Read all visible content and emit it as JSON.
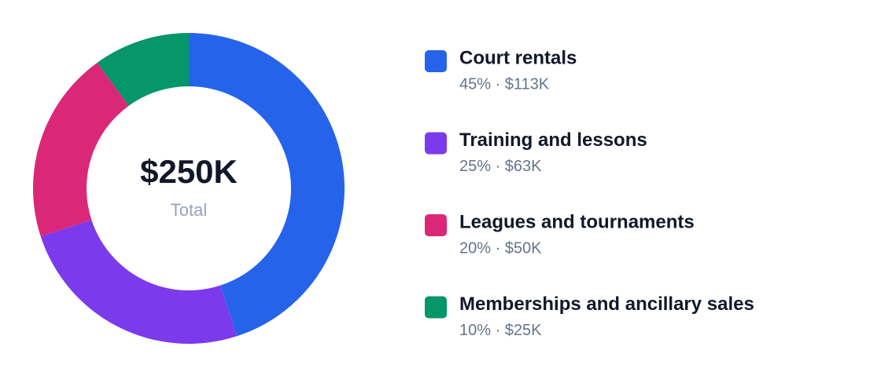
{
  "chart_data": {
    "type": "pie",
    "center_value": "$250K",
    "center_label": "Total",
    "categories": [
      "Court rentals",
      "Training and lessons",
      "Leagues and tournaments",
      "Memberships and ancillary sales"
    ],
    "values": [
      45,
      25,
      20,
      10
    ],
    "value_labels": [
      "45% · $113K",
      "25% · $63K",
      "20% · $50K",
      "10% · $25K"
    ],
    "colors": [
      "#2563eb",
      "#7c3aed",
      "#db2777",
      "#059669"
    ]
  }
}
